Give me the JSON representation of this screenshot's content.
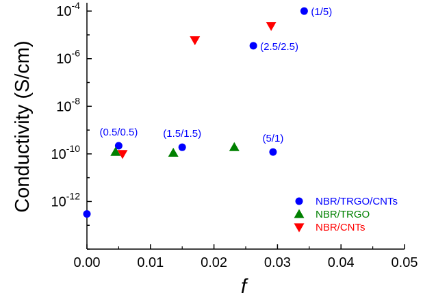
{
  "chart_data": {
    "type": "scatter",
    "title": "",
    "xlabel": "f",
    "ylabel": "Conductivity (S/cm)",
    "xlim": [
      0,
      0.05
    ],
    "ylim_exp": [
      -14,
      -3.65
    ],
    "yscale": "log",
    "x_ticks": [
      "0.00",
      "0.01",
      "0.02",
      "0.03",
      "0.04",
      "0.05"
    ],
    "x_tick_values": [
      0,
      0.01,
      0.02,
      0.03,
      0.04,
      0.05
    ],
    "y_ticks": [
      {
        "exp": -12,
        "base": "10",
        "sup": "-12"
      },
      {
        "exp": -10,
        "base": "10",
        "sup": "-10"
      },
      {
        "exp": -8,
        "base": "10",
        "sup": "-8"
      },
      {
        "exp": -6,
        "base": "10",
        "sup": "-6"
      },
      {
        "exp": -4,
        "base": "10",
        "sup": "-4"
      }
    ],
    "grid": false,
    "legend_position": "bottom-right",
    "series": [
      {
        "name": "NBR/TRGO/CNTs",
        "marker": "circle",
        "color": "#0000ff",
        "points": [
          {
            "x": 0.0,
            "y": 3e-13,
            "label": ""
          },
          {
            "x": 0.005,
            "y": 2.2e-10,
            "label": "(0.5/0.5)"
          },
          {
            "x": 0.015,
            "y": 1.9e-10,
            "label": "(1.5/1.5)"
          },
          {
            "x": 0.0262,
            "y": 3.5e-06,
            "label": "(2.5/2.5)"
          },
          {
            "x": 0.0293,
            "y": 1.2e-10,
            "label": "(5/1)"
          },
          {
            "x": 0.0342,
            "y": 0.0001,
            "label": "(1/5)"
          }
        ]
      },
      {
        "name": "NBR/TRGO",
        "marker": "triangle-up",
        "color": "#008000",
        "points": [
          {
            "x": 0.0045,
            "y": 1.2e-10
          },
          {
            "x": 0.0136,
            "y": 1.1e-10
          },
          {
            "x": 0.0232,
            "y": 1.9e-10
          }
        ]
      },
      {
        "name": "NBR/CNTs",
        "marker": "triangle-down",
        "color": "#ff0000",
        "points": [
          {
            "x": 0.0056,
            "y": 1e-10
          },
          {
            "x": 0.017,
            "y": 6e-06
          },
          {
            "x": 0.029,
            "y": 2.4e-05
          }
        ]
      }
    ]
  }
}
